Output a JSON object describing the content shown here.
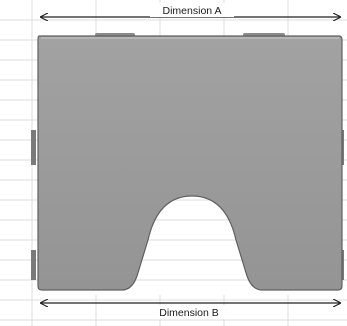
{
  "diagram": {
    "dimension_a_label": "Dimension A",
    "dimension_b_label": "Dimension B"
  },
  "colors": {
    "plate_fill": "#9a9a9a",
    "plate_edge": "#5f5f5f",
    "grid_line": "#d9d9d9",
    "arrow": "#222222"
  }
}
